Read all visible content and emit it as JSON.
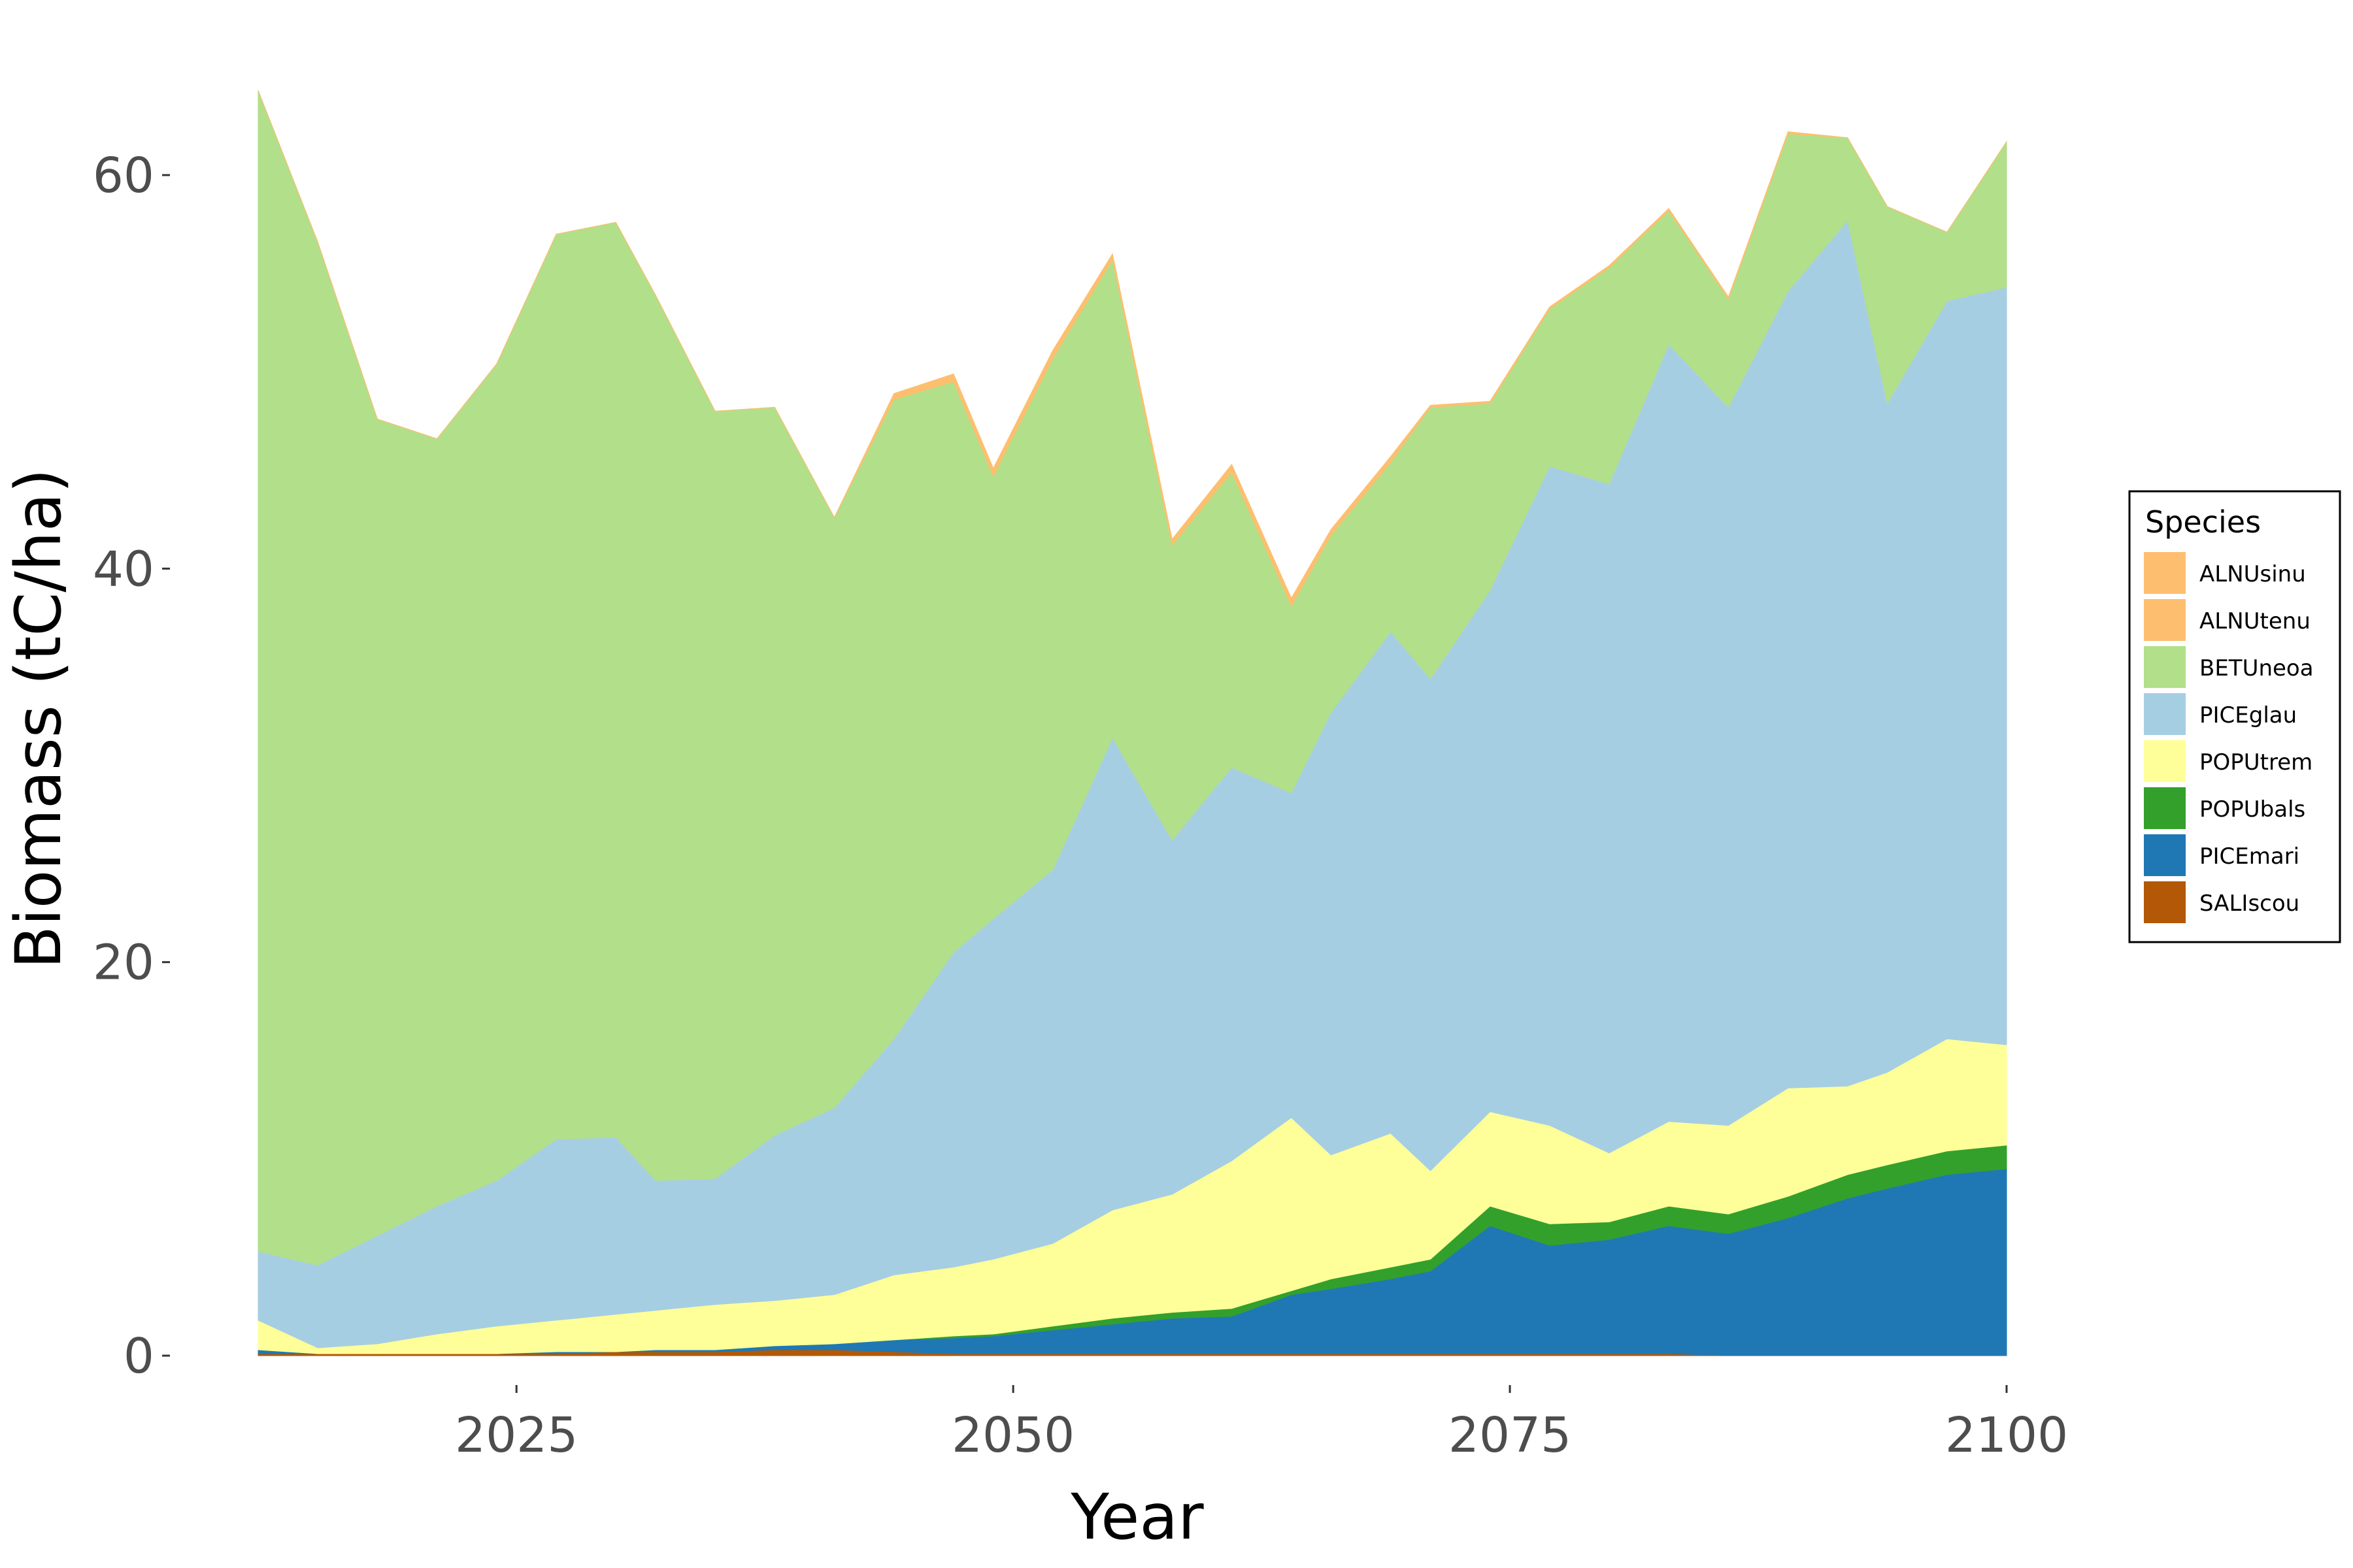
{
  "chart_data": {
    "type": "area",
    "stacked": true,
    "xlabel": "Year",
    "ylabel": "Biomass (tC/ha)",
    "xlim": [
      2012,
      2100
    ],
    "ylim": [
      -2.5,
      66
    ],
    "x_ticks": [
      2025,
      2050,
      2075,
      2100
    ],
    "y_ticks": [
      0,
      20,
      40,
      60
    ],
    "grid": false,
    "legend": {
      "title": "Species",
      "placement": "right"
    },
    "x": [
      2012,
      2015,
      2018,
      2021,
      2024,
      2027,
      2030,
      2032,
      2035,
      2038,
      2041,
      2044,
      2047,
      2049,
      2052,
      2055,
      2058,
      2061,
      2064,
      2066,
      2069,
      2071,
      2074,
      2077,
      2080,
      2083,
      2086,
      2089,
      2092,
      2094,
      2097,
      2100
    ],
    "series": [
      {
        "name": "SALIscou",
        "color": "#b35806",
        "values": [
          0.1,
          0.1,
          0.1,
          0.1,
          0.1,
          0.1,
          0.2,
          0.2,
          0.2,
          0.3,
          0.3,
          0.2,
          0.1,
          0.1,
          0.1,
          0.1,
          0.1,
          0.1,
          0.1,
          0.1,
          0.1,
          0.1,
          0.1,
          0.1,
          0.1,
          0.1,
          0,
          0,
          0,
          0,
          0,
          0
        ]
      },
      {
        "name": "PICEmari",
        "color": "#1f78b4",
        "values": [
          0.2,
          0,
          0,
          0,
          0,
          0.1,
          0,
          0.1,
          0.1,
          0.2,
          0.3,
          0.6,
          0.8,
          0.9,
          1.2,
          1.5,
          1.8,
          1.9,
          3.0,
          3.3,
          3.8,
          4.2,
          6.5,
          5.5,
          5.8,
          6.5,
          6.2,
          7.0,
          8.0,
          8.5,
          9.2,
          9.5
        ]
      },
      {
        "name": "POPUbals",
        "color": "#33a02c",
        "values": [
          0,
          0,
          0,
          0,
          0,
          0,
          0,
          0,
          0,
          0,
          0,
          0,
          0.1,
          0.1,
          0.2,
          0.3,
          0.3,
          0.4,
          0.2,
          0.5,
          0.6,
          0.6,
          1.0,
          1.1,
          0.9,
          1.0,
          1.0,
          1.1,
          1.2,
          1.2,
          1.2,
          1.2
        ]
      },
      {
        "name": "POPUtrem",
        "color": "#ffff99",
        "values": [
          1.5,
          0.3,
          0.5,
          1.0,
          1.4,
          1.6,
          1.9,
          2.0,
          2.3,
          2.3,
          2.5,
          3.3,
          3.5,
          3.8,
          4.2,
          5.5,
          6.0,
          7.5,
          8.8,
          6.3,
          6.8,
          4.5,
          4.8,
          5.0,
          3.5,
          4.3,
          4.5,
          5.5,
          4.5,
          4.7,
          5.7,
          5.1
        ]
      },
      {
        "name": "PICEglau",
        "color": "#a6cee3",
        "values": [
          3.5,
          4.2,
          5.5,
          6.5,
          7.4,
          9.2,
          9.0,
          6.6,
          6.4,
          8.4,
          9.5,
          12.0,
          16.0,
          17.3,
          19.0,
          24.0,
          18.0,
          20.0,
          16.5,
          22.5,
          25.5,
          25.0,
          26.5,
          33.5,
          34.0,
          39.5,
          36.5,
          40.5,
          44.0,
          34.0,
          37.5,
          38.5
        ]
      },
      {
        "name": "BETUneoa",
        "color": "#b2df8a",
        "values": [
          59.0,
          52.0,
          41.5,
          39.0,
          41.5,
          46.0,
          46.5,
          45.0,
          39.0,
          37.0,
          30.0,
          32.5,
          29.0,
          22.5,
          26.0,
          24.3,
          15.0,
          15.0,
          9.5,
          9.0,
          8.6,
          13.8,
          9.5,
          8.0,
          11.0,
          6.8,
          5.5,
          8.0,
          4.2,
          10.0,
          3.5,
          7.4
        ]
      },
      {
        "name": "ALNUtenu",
        "color": "#fdbf6f",
        "values": [
          0,
          0,
          0,
          0,
          0,
          0,
          0,
          0,
          0,
          0,
          0,
          0.2,
          0.3,
          0.3,
          0.3,
          0.2,
          0.2,
          0.3,
          0.3,
          0.2,
          0.2,
          0.1,
          0.1,
          0.1,
          0.1,
          0.1,
          0.1,
          0.1,
          0,
          0,
          0,
          0
        ]
      },
      {
        "name": "ALNUsinu",
        "color": "#fdbf6f",
        "values": [
          0,
          0,
          0,
          0,
          0,
          0,
          0,
          0,
          0,
          0,
          0,
          0.1,
          0.1,
          0.1,
          0.1,
          0.1,
          0.1,
          0.1,
          0.1,
          0.1,
          0.1,
          0,
          0,
          0,
          0,
          0,
          0,
          0,
          0,
          0,
          0,
          0
        ]
      }
    ]
  }
}
